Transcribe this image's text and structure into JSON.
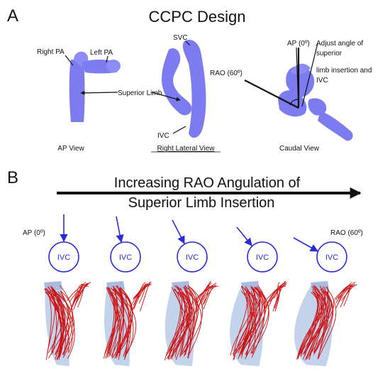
{
  "panel_a": {
    "letter": "A",
    "title": "CCPC Design",
    "ap_view": {
      "right_pa": "Right PA",
      "left_pa": "Left PA",
      "superior_limb": "Superior Limb",
      "caption": "AP View"
    },
    "lateral_view": {
      "svc": "SVC",
      "ivc": "IVC",
      "caption": "Right Lateral View"
    },
    "caudal_view": {
      "ap_angle": "AP (0º)",
      "rao_angle": "RAO (60º)",
      "adjust_line1": "Adjust angle of",
      "adjust_line2": "superior",
      "adjust_line3": "limb insertion and",
      "adjust_line4": "IVC",
      "caption": "Caudal  View"
    }
  },
  "panel_b": {
    "letter": "B",
    "heading_line1": "Increasing RAO Angulation of",
    "heading_line2": "Superior Limb Insertion",
    "start_label": "AP (0º)",
    "end_label": "RAO (60º)",
    "ivc_labels": [
      "IVC",
      "IVC",
      "IVC",
      "IVC",
      "IVC"
    ]
  },
  "colors": {
    "model_blue": "#7c7cf0",
    "model_pale": "#b9cbe9",
    "streamline_red": "#cc1111",
    "indicator_blue": "#2a2ad6"
  }
}
